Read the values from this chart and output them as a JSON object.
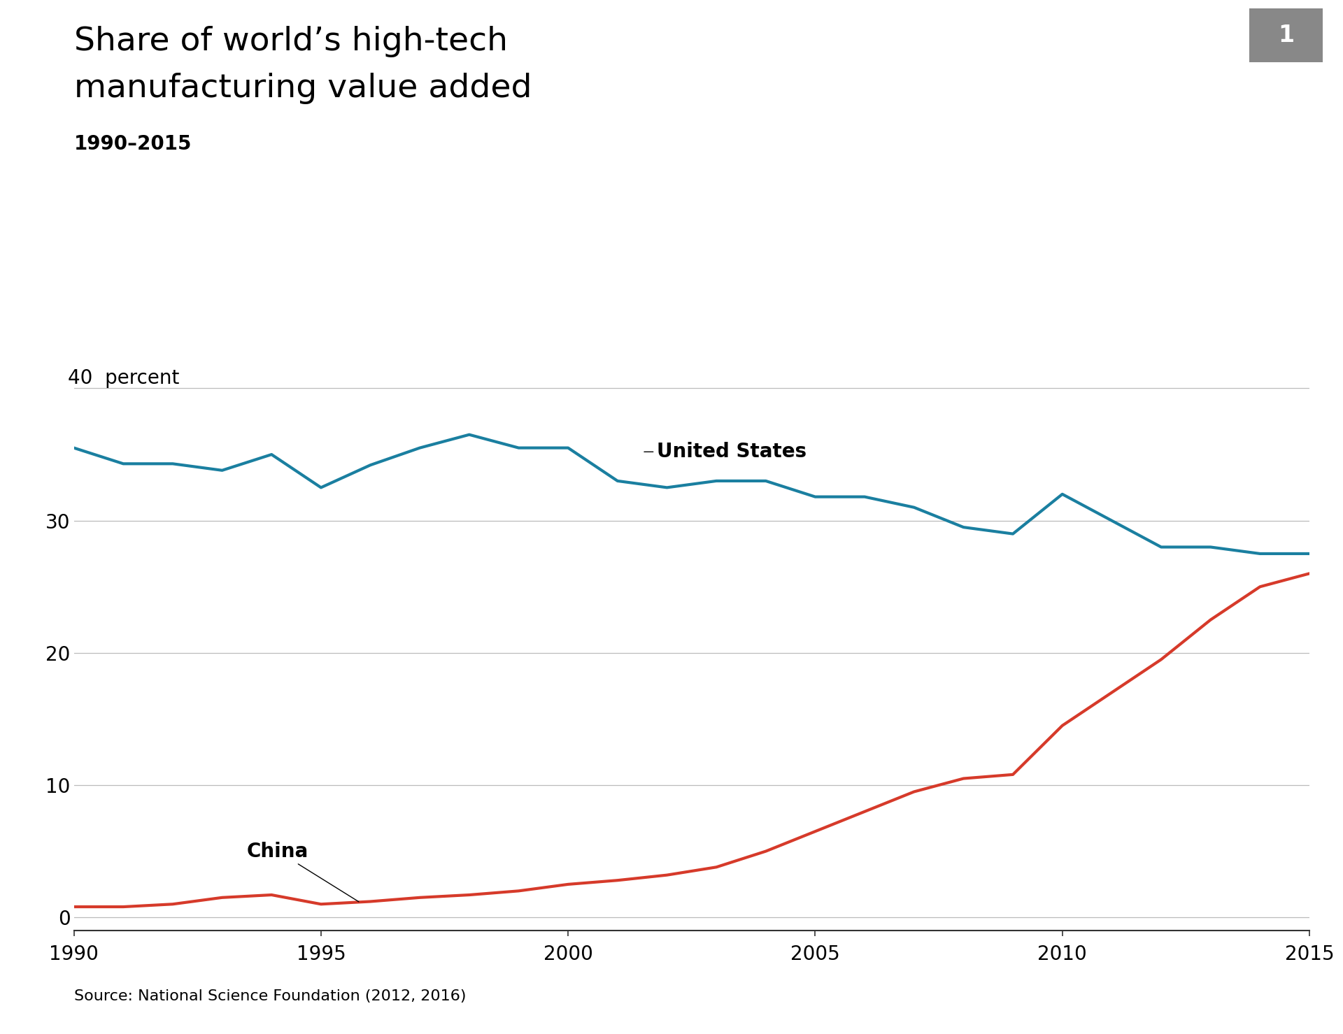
{
  "title_line1": "Share of world’s high-tech",
  "title_line2": "manufacturing value added",
  "subtitle": "1990–2015",
  "figure_number": "1",
  "source": "Source: National Science Foundation (2012, 2016)",
  "us_color": "#1a7fa0",
  "china_color": "#d63a2a",
  "background_color": "#ffffff",
  "ylim": [
    -1,
    42
  ],
  "yticks": [
    0,
    10,
    20,
    30,
    40
  ],
  "xlim": [
    1990,
    2015
  ],
  "xticks": [
    1990,
    1995,
    2000,
    2005,
    2010,
    2015
  ],
  "us_years": [
    1990,
    1991,
    1992,
    1993,
    1994,
    1995,
    1996,
    1997,
    1998,
    1999,
    2000,
    2001,
    2002,
    2003,
    2004,
    2005,
    2006,
    2007,
    2008,
    2009,
    2010,
    2011,
    2012,
    2013,
    2014,
    2015
  ],
  "us_values": [
    35.5,
    34.3,
    34.3,
    33.8,
    35.0,
    32.5,
    34.2,
    35.5,
    36.5,
    35.5,
    35.5,
    33.0,
    32.5,
    33.0,
    33.0,
    31.8,
    31.8,
    31.0,
    29.5,
    29.0,
    32.0,
    30.0,
    28.0,
    28.0,
    27.5,
    27.5
  ],
  "china_years": [
    1990,
    1991,
    1992,
    1993,
    1994,
    1995,
    1996,
    1997,
    1998,
    1999,
    2000,
    2001,
    2002,
    2003,
    2004,
    2005,
    2006,
    2007,
    2008,
    2009,
    2010,
    2011,
    2012,
    2013,
    2014,
    2015
  ],
  "china_values": [
    0.8,
    0.8,
    1.0,
    1.5,
    1.7,
    1.0,
    1.2,
    1.5,
    1.7,
    2.0,
    2.5,
    2.8,
    3.2,
    3.8,
    5.0,
    6.5,
    8.0,
    9.5,
    10.5,
    10.8,
    14.5,
    17.0,
    19.5,
    22.5,
    25.0,
    26.0
  ],
  "line_width": 3.0,
  "title_fontsize": 34,
  "subtitle_fontsize": 20,
  "tick_fontsize": 20,
  "annotation_fontsize": 20,
  "source_fontsize": 16,
  "number_fontsize": 24,
  "ylabel_fontsize": 20,
  "us_label": "United States",
  "china_label": "China",
  "grid_color": "#bbbbbb",
  "spine_color": "#333333"
}
